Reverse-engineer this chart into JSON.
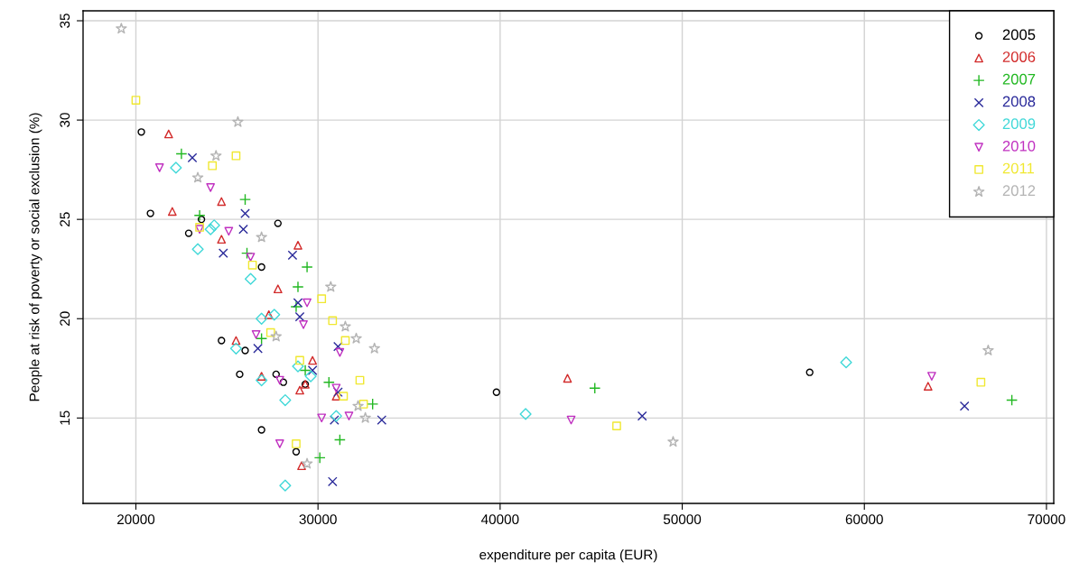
{
  "chart_data": {
    "type": "scatter",
    "xlabel": "expenditure per capita (EUR)",
    "ylabel": "People at risk of poverty or social exclusion (%)",
    "xlim": [
      17100,
      70400
    ],
    "ylim": [
      10.7,
      35.5
    ],
    "xticks": [
      20000,
      30000,
      40000,
      50000,
      60000,
      70000
    ],
    "yticks": [
      15,
      20,
      25,
      30,
      35
    ],
    "grid": true,
    "legend": "top right",
    "series": [
      {
        "name": "2005",
        "color": "#000000",
        "marker": "circle",
        "x": [
          20300,
          20800,
          23600,
          22900,
          27800,
          26900,
          24700,
          26000,
          25700,
          27700,
          28100,
          29300,
          26900,
          28800,
          39800,
          57000
        ],
        "values": [
          29.4,
          25.3,
          25.0,
          24.3,
          24.8,
          22.6,
          18.9,
          18.4,
          17.2,
          17.2,
          16.8,
          16.7,
          14.4,
          13.3,
          16.3,
          17.3
        ]
      },
      {
        "name": "2006",
        "color": "#d22b2b",
        "marker": "triangle",
        "x": [
          21800,
          22000,
          24700,
          24700,
          28900,
          27800,
          27300,
          25500,
          26900,
          29700,
          29300,
          29000,
          31000,
          29100,
          43700,
          63500
        ],
        "values": [
          29.3,
          25.4,
          25.9,
          24.0,
          23.7,
          21.5,
          20.2,
          18.9,
          17.1,
          17.9,
          16.7,
          16.4,
          16.1,
          12.6,
          17.0,
          16.6
        ]
      },
      {
        "name": "2007",
        "color": "#22b822",
        "marker": "plus",
        "x": [
          22500,
          26000,
          23500,
          26100,
          29400,
          28900,
          28800,
          26900,
          29300,
          30600,
          33000,
          31200,
          30100,
          45200,
          68100
        ],
        "values": [
          28.3,
          26.0,
          25.2,
          23.3,
          22.6,
          21.6,
          20.6,
          19.0,
          17.4,
          16.8,
          15.7,
          13.9,
          13.0,
          16.5,
          15.9
        ]
      },
      {
        "name": "2008",
        "color": "#2a2a9a",
        "marker": "cross",
        "x": [
          23100,
          26000,
          25900,
          24800,
          28600,
          28900,
          29000,
          26700,
          29700,
          31100,
          31100,
          30900,
          33500,
          30800,
          47800,
          65500
        ],
        "values": [
          28.1,
          25.3,
          24.5,
          23.3,
          23.2,
          20.8,
          20.1,
          18.5,
          17.4,
          18.6,
          16.3,
          14.9,
          14.9,
          11.8,
          15.1,
          15.6
        ]
      },
      {
        "name": "2009",
        "color": "#40d8d8",
        "marker": "diamond",
        "x": [
          22200,
          24300,
          24100,
          23400,
          26300,
          26900,
          27600,
          25500,
          26900,
          28900,
          29600,
          28200,
          31000,
          28200,
          41400,
          59000
        ],
        "values": [
          27.6,
          24.7,
          24.5,
          23.5,
          22.0,
          20.0,
          20.2,
          18.5,
          16.9,
          17.6,
          17.1,
          15.9,
          15.1,
          11.6,
          15.2,
          17.8
        ]
      },
      {
        "name": "2010",
        "color": "#c030c0",
        "marker": "triangle_down",
        "x": [
          21300,
          24100,
          25100,
          23500,
          26300,
          29400,
          29200,
          26600,
          27900,
          31200,
          31000,
          30200,
          31700,
          27900,
          43900,
          63700
        ],
        "values": [
          27.6,
          26.6,
          24.4,
          24.5,
          23.1,
          20.8,
          19.7,
          19.2,
          16.9,
          18.3,
          16.5,
          15.0,
          15.1,
          13.7,
          14.9,
          17.1
        ]
      },
      {
        "name": "2011",
        "color": "#f0e830",
        "marker": "square",
        "x": [
          20000,
          25500,
          24200,
          23500,
          26400,
          30200,
          30800,
          31500,
          27400,
          29000,
          32300,
          31400,
          32500,
          28800,
          46400,
          66400
        ],
        "values": [
          31.0,
          28.2,
          27.7,
          24.6,
          22.7,
          21.0,
          19.9,
          18.9,
          19.3,
          17.9,
          16.9,
          16.1,
          15.7,
          13.7,
          14.6,
          16.8
        ]
      },
      {
        "name": "2012",
        "color": "#b4b4b4",
        "marker": "star",
        "x": [
          19200,
          25600,
          24400,
          23400,
          26900,
          30700,
          31500,
          27700,
          32100,
          33100,
          32200,
          32600,
          29400,
          49500,
          66800
        ],
        "values": [
          34.6,
          29.9,
          28.2,
          27.1,
          24.1,
          21.6,
          19.6,
          19.1,
          19.0,
          18.5,
          15.6,
          15.0,
          12.7,
          13.8,
          18.4
        ]
      }
    ]
  }
}
